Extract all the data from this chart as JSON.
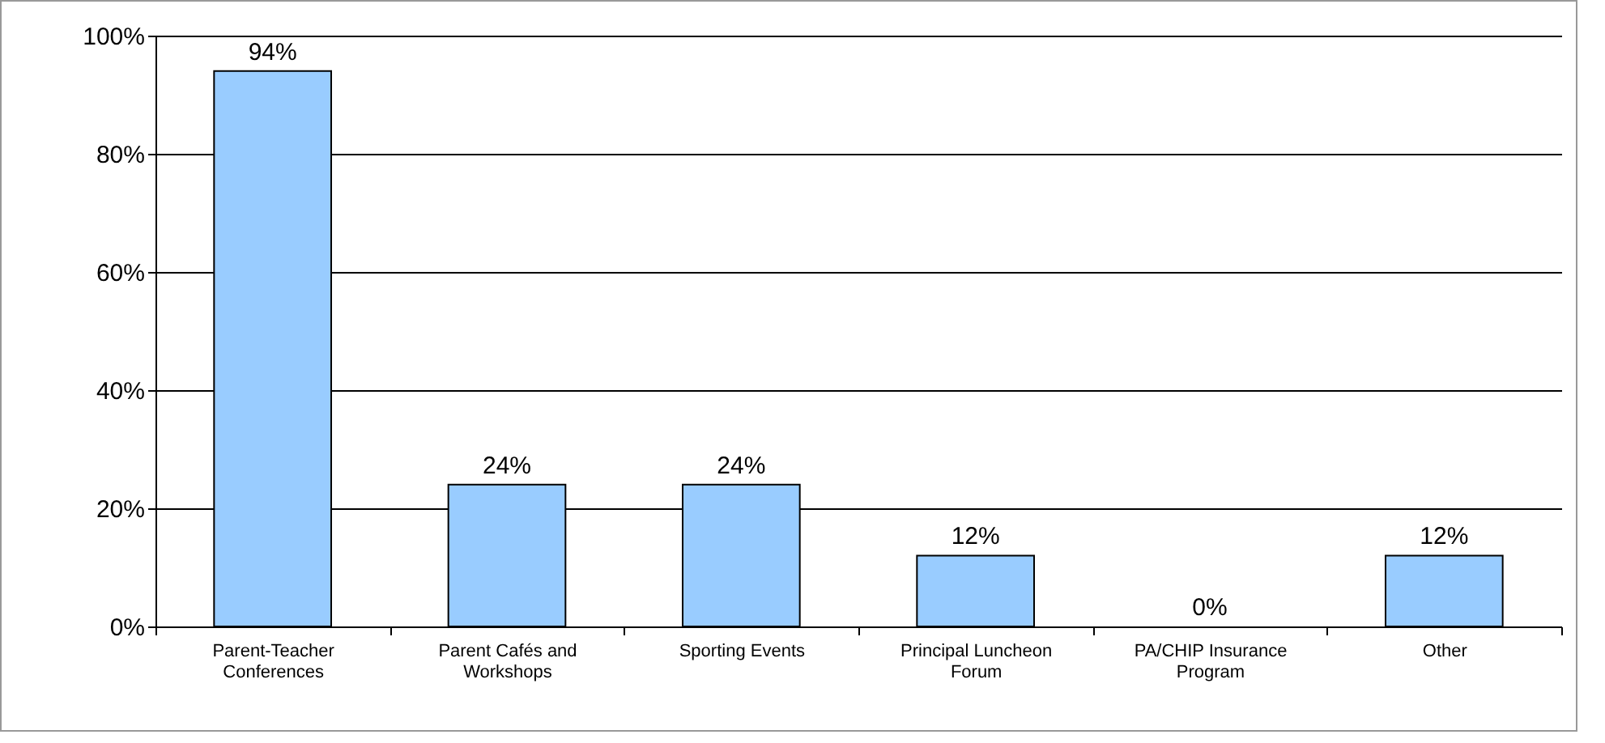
{
  "chart_data": {
    "type": "bar",
    "categories": [
      "Parent-Teacher Conferences",
      "Parent Cafés and Workshops",
      "Sporting Events",
      "Principal Luncheon Forum",
      "PA/CHIP Insurance Program",
      "Other"
    ],
    "values": [
      94,
      24,
      24,
      12,
      0,
      12
    ],
    "value_labels": [
      "94%",
      "24%",
      "24%",
      "12%",
      "0%",
      "12%"
    ],
    "color": "#99ccff",
    "ylim": [
      0,
      100
    ],
    "yticks": [
      {
        "value": 0,
        "label": "0%"
      },
      {
        "value": 20,
        "label": "20%"
      },
      {
        "value": 40,
        "label": "40%"
      },
      {
        "value": 60,
        "label": "60%"
      },
      {
        "value": 80,
        "label": "80%"
      },
      {
        "value": 100,
        "label": "100%"
      }
    ],
    "grid": "y"
  }
}
